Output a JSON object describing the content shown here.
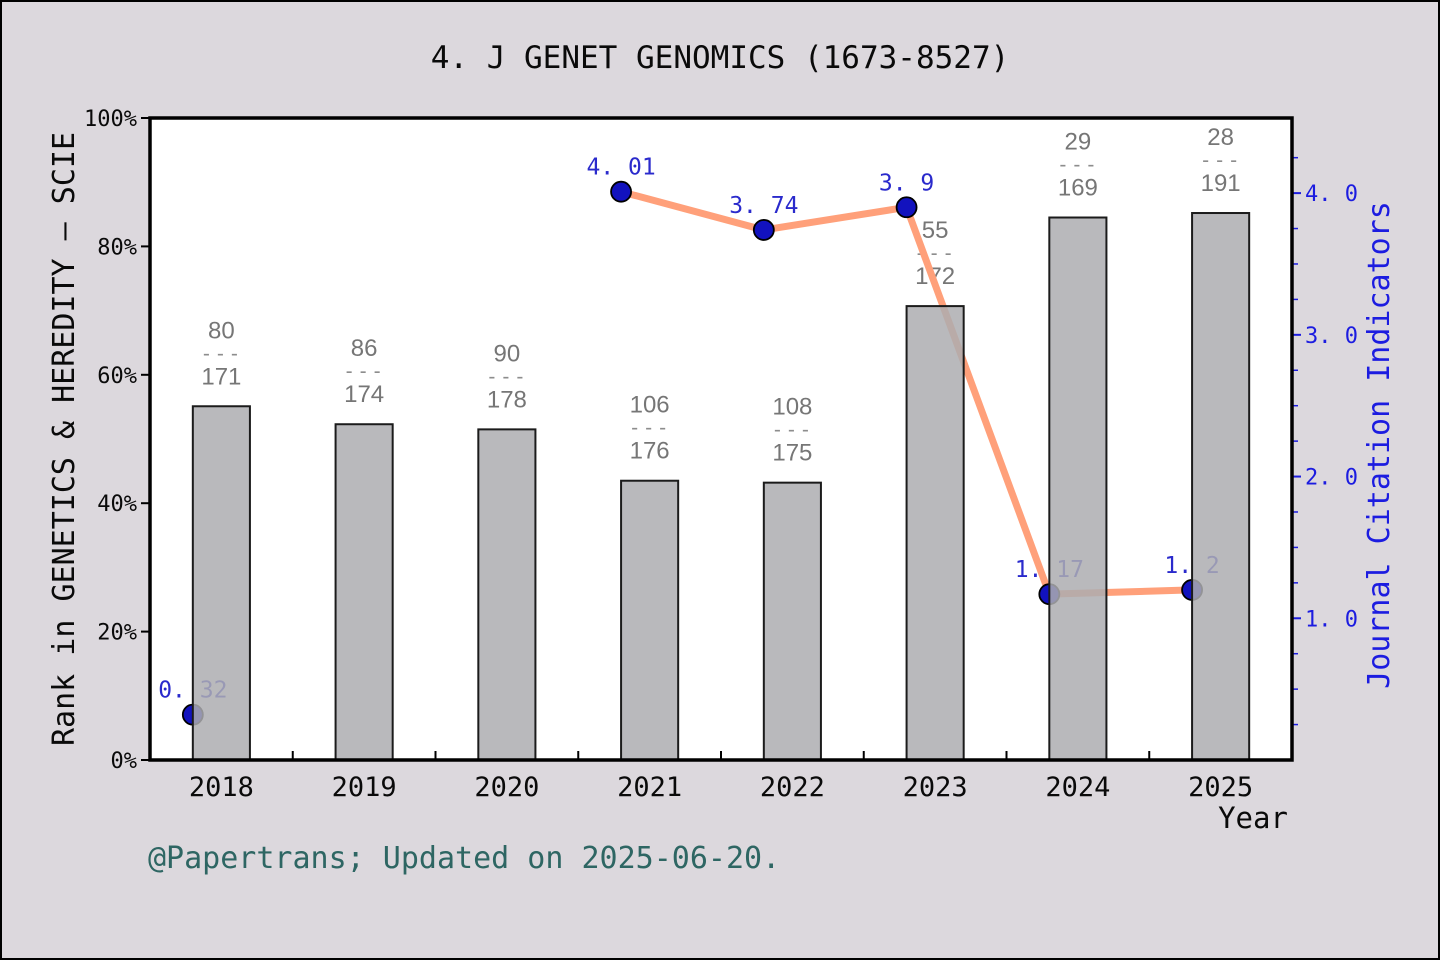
{
  "title": "4. J GENET GENOMICS (1673-8527)",
  "caption": "@Papertrans; Updated on 2025-06-20.",
  "axes": {
    "left_label": "Rank in GENETICS & HEREDITY — SCIE",
    "right_label": "Journal Citation Indicators",
    "x_label": "Year",
    "left_ticks": [
      "0%",
      "20%",
      "40%",
      "60%",
      "80%",
      "100%"
    ],
    "right_ticks": [
      "1. 0",
      "2. 0",
      "3. 0",
      "4. 0"
    ]
  },
  "colors": {
    "background": "#DCD8DD",
    "plot_background": "#FFFFFF",
    "frame_border": "#000000",
    "bar_fill": "#ADADB0",
    "bar_edge": "#1B1B1B",
    "line": "#FFA07A",
    "marker": "#1212BE",
    "marker_edge": "#000000",
    "value_label": "#2A2ACC",
    "right_axis": "#1C1CE0",
    "fraction_label": "#767676",
    "caption": "#2E6663",
    "axis": "#000000"
  },
  "chart_data": {
    "type": "bar+line dual-axis",
    "categories": [
      "2018",
      "2019",
      "2020",
      "2021",
      "2022",
      "2023",
      "2024",
      "2025"
    ],
    "series": [
      {
        "name": "Rank in GENETICS & HEREDITY - SCIE",
        "type": "bar",
        "axis": "left",
        "unit": "percentile",
        "values": [
          55.1,
          52.3,
          51.5,
          43.5,
          43.2,
          70.7,
          84.5,
          85.2
        ],
        "rank_labels": [
          {
            "numerator": "80",
            "denominator": "171"
          },
          {
            "numerator": "86",
            "denominator": "174"
          },
          {
            "numerator": "90",
            "denominator": "178"
          },
          {
            "numerator": "106",
            "denominator": "176"
          },
          {
            "numerator": "108",
            "denominator": "175"
          },
          {
            "numerator": "55",
            "denominator": "172"
          },
          {
            "numerator": "29",
            "denominator": "169"
          },
          {
            "numerator": "28",
            "denominator": "191"
          }
        ]
      },
      {
        "name": "Journal Citation Indicators",
        "type": "line",
        "axis": "right",
        "values": [
          0.32,
          null,
          null,
          4.01,
          3.74,
          3.9,
          1.17,
          1.2
        ],
        "point_labels": [
          "0. 32",
          null,
          null,
          "4. 01",
          "3. 74",
          "3. 9",
          "1. 17",
          "1. 2"
        ]
      }
    ],
    "left_axis": {
      "range": [
        0,
        100
      ],
      "ticks": [
        0,
        20,
        40,
        60,
        80,
        100
      ],
      "format": "percent"
    },
    "right_axis": {
      "range": [
        0,
        4.53
      ],
      "ticks": [
        1,
        2,
        3,
        4
      ],
      "minor_step": 0.25
    },
    "grid": false,
    "legend": "none"
  }
}
